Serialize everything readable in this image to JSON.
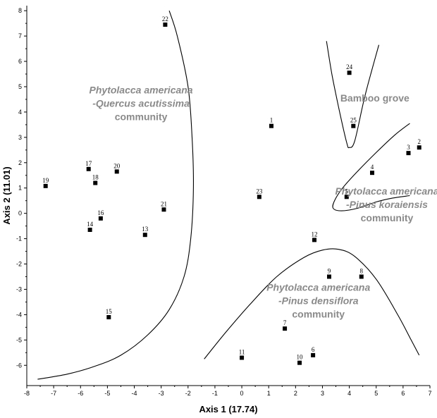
{
  "chart_data": {
    "type": "scatter",
    "xlabel": "Axis 1 (17.74)",
    "ylabel": "Axis 2 (11.01)",
    "xlim": [
      -8,
      7
    ],
    "ylim": [
      -6.8,
      8.2
    ],
    "x_ticks": [
      -8,
      -7,
      -6,
      -5,
      -4,
      -3,
      -2,
      -1,
      0,
      1,
      2,
      3,
      4,
      5,
      6,
      7
    ],
    "y_ticks": [
      -6,
      -5,
      -4,
      -3,
      -2,
      -1,
      0,
      1,
      2,
      3,
      4,
      5,
      6,
      7,
      8
    ],
    "grid": false,
    "points": [
      {
        "label": "1",
        "x": 1.1,
        "y": 3.45
      },
      {
        "label": "2",
        "x": 6.6,
        "y": 2.6
      },
      {
        "label": "3",
        "x": 6.2,
        "y": 2.38
      },
      {
        "label": "4",
        "x": 4.85,
        "y": 1.6
      },
      {
        "label": "5",
        "x": 3.9,
        "y": 0.65
      },
      {
        "label": "6",
        "x": 2.65,
        "y": -5.6
      },
      {
        "label": "7",
        "x": 1.6,
        "y": -4.55
      },
      {
        "label": "8",
        "x": 4.45,
        "y": -2.5
      },
      {
        "label": "9",
        "x": 3.25,
        "y": -2.5
      },
      {
        "label": "10",
        "x": 2.15,
        "y": -5.9
      },
      {
        "label": "11",
        "x": 0.0,
        "y": -5.7
      },
      {
        "label": "12",
        "x": 2.7,
        "y": -1.05
      },
      {
        "label": "13",
        "x": -3.6,
        "y": -0.85
      },
      {
        "label": "14",
        "x": -5.65,
        "y": -0.65
      },
      {
        "label": "15",
        "x": -4.95,
        "y": -4.1
      },
      {
        "label": "16",
        "x": -5.25,
        "y": -0.2
      },
      {
        "label": "17",
        "x": -5.7,
        "y": 1.75
      },
      {
        "label": "18",
        "x": -5.45,
        "y": 1.2
      },
      {
        "label": "19",
        "x": -7.3,
        "y": 1.08
      },
      {
        "label": "20",
        "x": -4.65,
        "y": 1.65
      },
      {
        "label": "21",
        "x": -2.9,
        "y": 0.15
      },
      {
        "label": "22",
        "x": -2.85,
        "y": 7.45
      },
      {
        "label": "23",
        "x": 0.65,
        "y": 0.65
      },
      {
        "label": "24",
        "x": 4.0,
        "y": 5.55
      },
      {
        "label": "25",
        "x": 4.15,
        "y": 3.45
      }
    ],
    "boundaries": [
      {
        "name": "left-boundary",
        "points": [
          [
            -2.7,
            8.0
          ],
          [
            -2.4,
            7.0
          ],
          [
            -2.0,
            5.0
          ],
          [
            -1.85,
            3.0
          ],
          [
            -1.8,
            1.0
          ],
          [
            -1.9,
            -1.0
          ],
          [
            -2.15,
            -2.5
          ],
          [
            -2.7,
            -3.8
          ],
          [
            -3.5,
            -4.8
          ],
          [
            -4.5,
            -5.6
          ],
          [
            -5.5,
            -6.05
          ],
          [
            -6.5,
            -6.35
          ],
          [
            -7.6,
            -6.55
          ]
        ]
      },
      {
        "name": "top-boundary",
        "points": [
          [
            3.15,
            6.8
          ],
          [
            3.35,
            5.5
          ],
          [
            3.6,
            4.2
          ],
          [
            3.9,
            2.8
          ],
          [
            4.0,
            2.6
          ],
          [
            4.2,
            2.85
          ],
          [
            4.55,
            4.5
          ],
          [
            4.85,
            5.7
          ],
          [
            5.1,
            6.65
          ]
        ]
      },
      {
        "name": "right-boundary",
        "points": [
          [
            6.25,
            3.55
          ],
          [
            5.7,
            3.1
          ],
          [
            5.0,
            2.4
          ],
          [
            4.3,
            1.65
          ],
          [
            3.75,
            1.0
          ],
          [
            3.45,
            0.5
          ],
          [
            3.4,
            0.2
          ],
          [
            3.7,
            0.1
          ],
          [
            4.3,
            0.2
          ],
          [
            5.0,
            0.45
          ],
          [
            5.6,
            0.6
          ],
          [
            6.25,
            0.7
          ]
        ]
      },
      {
        "name": "bottom-boundary",
        "points": [
          [
            -1.4,
            -5.75
          ],
          [
            -0.6,
            -4.7
          ],
          [
            0.3,
            -3.6
          ],
          [
            1.3,
            -2.5
          ],
          [
            2.3,
            -1.75
          ],
          [
            3.0,
            -1.45
          ],
          [
            3.6,
            -1.42
          ],
          [
            4.2,
            -1.7
          ],
          [
            5.0,
            -2.6
          ],
          [
            5.8,
            -4.0
          ],
          [
            6.3,
            -5.0
          ],
          [
            6.6,
            -5.6
          ]
        ]
      }
    ],
    "annotations": [
      {
        "id": "quercus",
        "lines": [
          "Phytolacca americana",
          "-Quercus acutissima",
          "community"
        ],
        "italic_lines": 2,
        "x": -3.75,
        "y": 4.35
      },
      {
        "id": "bamboo",
        "lines": [
          "Bamboo grove"
        ],
        "italic_lines": 0,
        "x": 4.95,
        "y": 4.55
      },
      {
        "id": "koraiensis",
        "lines": [
          "Phytolacca americana",
          "-Pinus koraiensis",
          "community"
        ],
        "italic_lines": 2,
        "x": 5.4,
        "y": 0.35
      },
      {
        "id": "densiflora",
        "lines": [
          "Phytolacca americana",
          "-Pinus densiflora",
          "community"
        ],
        "italic_lines": 2,
        "x": 2.85,
        "y": -3.45
      }
    ]
  }
}
